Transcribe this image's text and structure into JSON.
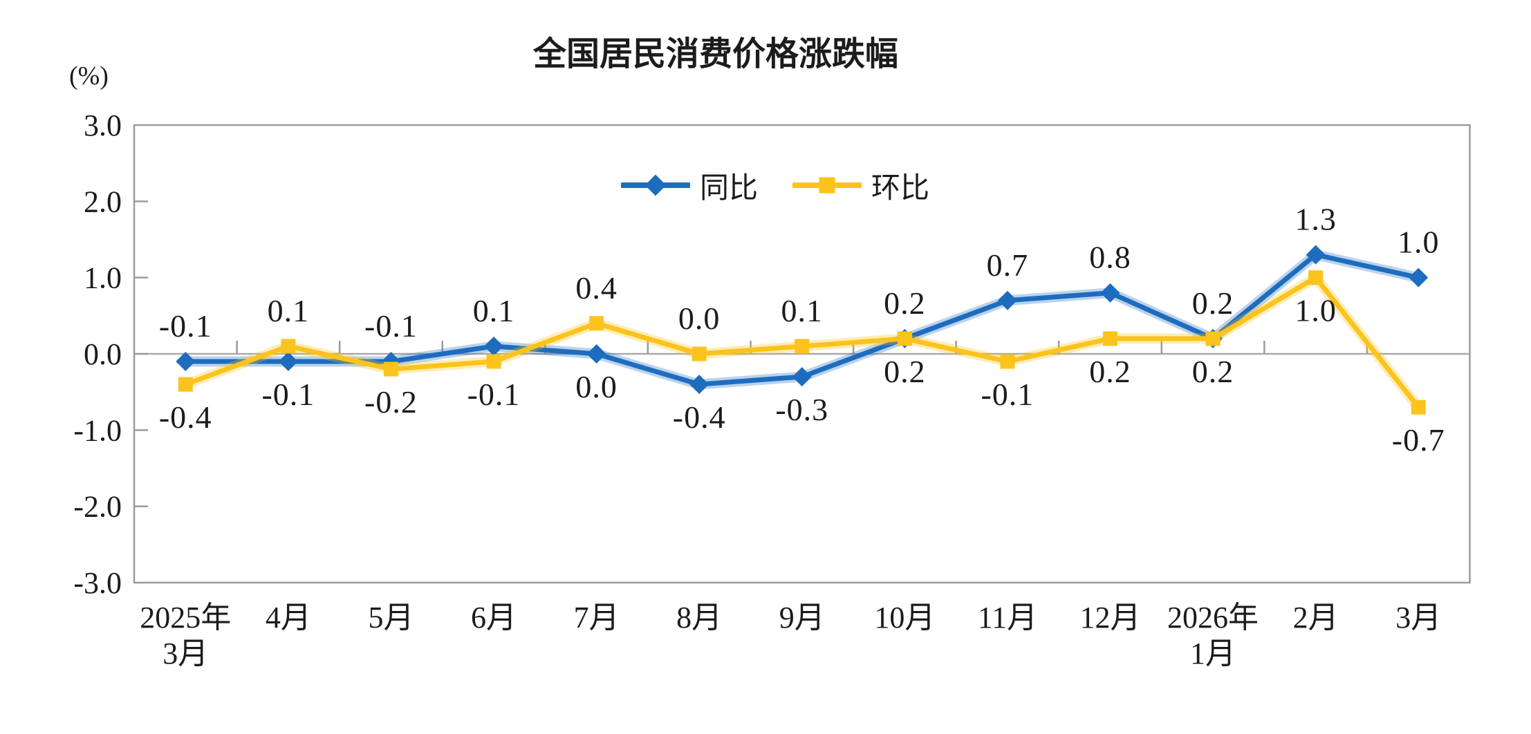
{
  "chart_data": {
    "type": "line",
    "title": "全国居民消费价格涨跌幅",
    "unit_label": "(%)",
    "categories": [
      "2025年3月",
      "4月",
      "5月",
      "6月",
      "7月",
      "8月",
      "9月",
      "10月",
      "11月",
      "12月",
      "2026年1月",
      "2月",
      "3月"
    ],
    "series": [
      {
        "key": "yoy",
        "name": "同比",
        "marker": "diamond",
        "color": "#1E6CBE",
        "values": [
          -0.1,
          -0.1,
          -0.1,
          0.1,
          0.0,
          -0.4,
          -0.3,
          0.2,
          0.7,
          0.8,
          0.2,
          1.3,
          1.0
        ]
      },
      {
        "key": "mom",
        "name": "环比",
        "marker": "square",
        "color": "#FBC31C",
        "values": [
          -0.4,
          0.1,
          -0.2,
          -0.1,
          0.4,
          0.0,
          0.1,
          0.2,
          -0.1,
          0.2,
          0.2,
          1.0,
          -0.7
        ]
      }
    ],
    "ylim": [
      -3.0,
      3.0
    ],
    "ytick_labels": [
      "3.0",
      "2.0",
      "1.0",
      "0.0",
      "-1.0",
      "-2.0",
      "-3.0"
    ],
    "grid": "none",
    "legend_position": "top-center",
    "axis_color": "#9B9B9B",
    "zero_line_color": "#A9A9A9",
    "text_color": "#1B1B1B"
  }
}
